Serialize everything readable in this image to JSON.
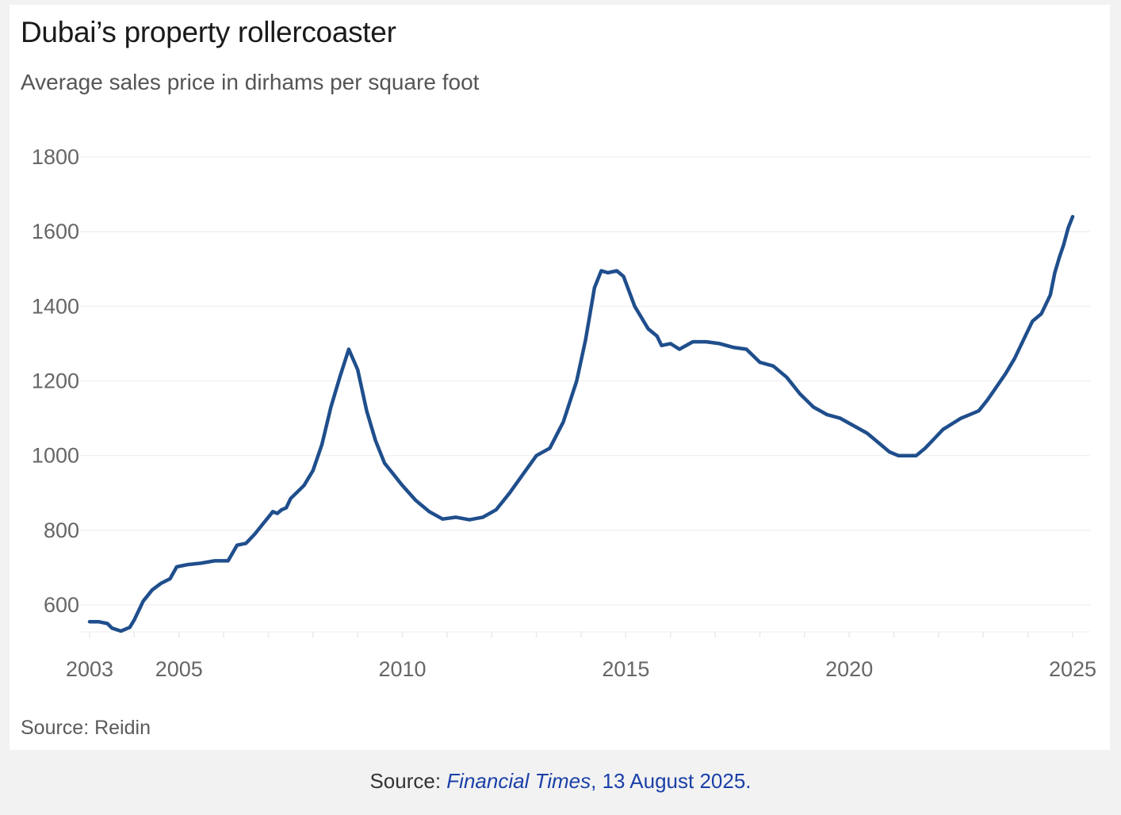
{
  "chart_data": {
    "type": "line",
    "title": "Dubai’s property rollercoaster",
    "subtitle": "Average sales price in dirhams per square foot",
    "xlabel": "",
    "ylabel": "",
    "xlim": [
      2003,
      2025
    ],
    "ylim": [
      560,
      1800
    ],
    "y_ticks": [
      600,
      800,
      1000,
      1200,
      1400,
      1600,
      1800
    ],
    "x_ticks": [
      2003,
      2005,
      2010,
      2015,
      2020,
      2025
    ],
    "grid": true,
    "color": "#1f4e8c",
    "series": [
      {
        "name": "Average sales price",
        "x": [
          2003.0,
          2003.2,
          2003.4,
          2003.5,
          2003.7,
          2003.9,
          2004.0,
          2004.2,
          2004.4,
          2004.6,
          2004.8,
          2004.95,
          2005.2,
          2005.5,
          2005.8,
          2006.1,
          2006.3,
          2006.5,
          2006.7,
          2006.9,
          2007.0,
          2007.1,
          2007.2,
          2007.3,
          2007.4,
          2007.5,
          2007.8,
          2008.0,
          2008.2,
          2008.4,
          2008.6,
          2008.8,
          2009.0,
          2009.2,
          2009.4,
          2009.6,
          2009.8,
          2010.0,
          2010.3,
          2010.6,
          2010.9,
          2011.2,
          2011.5,
          2011.8,
          2012.1,
          2012.4,
          2012.7,
          2013.0,
          2013.3,
          2013.6,
          2013.9,
          2014.1,
          2014.3,
          2014.45,
          2014.6,
          2014.8,
          2014.95,
          2015.2,
          2015.5,
          2015.7,
          2015.8,
          2016.0,
          2016.2,
          2016.5,
          2016.8,
          2017.1,
          2017.4,
          2017.7,
          2018.0,
          2018.3,
          2018.6,
          2018.9,
          2019.2,
          2019.5,
          2019.8,
          2020.1,
          2020.4,
          2020.7,
          2020.9,
          2021.1,
          2021.3,
          2021.5,
          2021.7,
          2021.9,
          2022.1,
          2022.3,
          2022.5,
          2022.7,
          2022.9,
          2023.1,
          2023.3,
          2023.5,
          2023.7,
          2023.9,
          2024.1,
          2024.3,
          2024.5,
          2024.6,
          2024.7,
          2024.8,
          2024.9,
          2025.0
        ],
        "values": [
          555,
          555,
          550,
          538,
          530,
          540,
          560,
          610,
          640,
          658,
          670,
          702,
          708,
          712,
          718,
          718,
          760,
          765,
          790,
          820,
          835,
          850,
          845,
          855,
          860,
          885,
          920,
          960,
          1030,
          1130,
          1210,
          1285,
          1230,
          1120,
          1040,
          980,
          950,
          920,
          880,
          850,
          830,
          835,
          828,
          835,
          855,
          900,
          950,
          1000,
          1020,
          1090,
          1200,
          1310,
          1450,
          1495,
          1490,
          1495,
          1480,
          1400,
          1340,
          1320,
          1295,
          1300,
          1285,
          1305,
          1305,
          1300,
          1290,
          1285,
          1250,
          1240,
          1210,
          1165,
          1130,
          1110,
          1100,
          1080,
          1060,
          1030,
          1010,
          1000,
          1000,
          1000,
          1020,
          1045,
          1070,
          1085,
          1100,
          1110,
          1120,
          1150,
          1185,
          1220,
          1260,
          1310,
          1360,
          1380,
          1430,
          1490,
          1530,
          1565,
          1610,
          1640
        ]
      }
    ],
    "source_label": "Source: Reidin"
  },
  "caption": {
    "prefix": "Source: ",
    "publication": "Financial Times",
    "suffix": ", 13 August 2025."
  }
}
